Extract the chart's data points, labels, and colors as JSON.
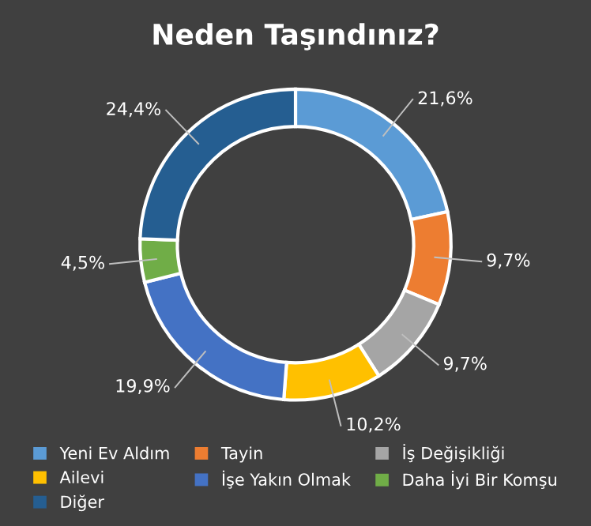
{
  "chart_data": {
    "type": "donut",
    "title": "Neden Taşındınız?",
    "categories": [
      "Yeni Ev Aldım",
      "Tayin",
      "İş Değişikliği",
      "Ailevi",
      "İşe Yakın Olmak",
      "Daha İyi Bir Komşu",
      "Diğer"
    ],
    "values": [
      21.6,
      9.7,
      9.7,
      10.2,
      19.9,
      4.5,
      24.4
    ],
    "value_labels": [
      "21,6%",
      "9,7%",
      "9,7%",
      "10,2%",
      "19,9%",
      "4,5%",
      "24,4%"
    ],
    "colors": [
      "#5b9bd5",
      "#ed7d31",
      "#a5a5a5",
      "#ffc000",
      "#4472c4",
      "#70ad47",
      "#255e91"
    ],
    "legend": "bottom"
  }
}
